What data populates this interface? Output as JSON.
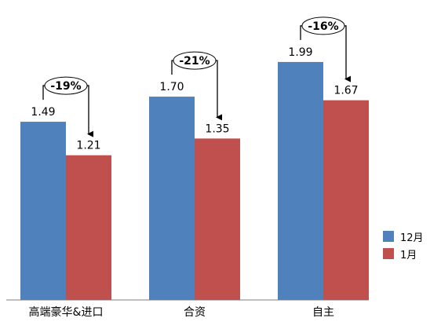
{
  "chart_data": {
    "type": "bar",
    "categories": [
      "高端豪华&进口",
      "合资",
      "自主"
    ],
    "series": [
      {
        "name": "12月",
        "values": [
          1.49,
          1.7,
          1.99
        ],
        "color": "#4f81bd"
      },
      {
        "name": "1月",
        "values": [
          1.21,
          1.35,
          1.67
        ],
        "color": "#c0504d"
      }
    ],
    "changes": [
      "-19%",
      "-21%",
      "-16%"
    ],
    "ylim": [
      0,
      2.2
    ],
    "grid": false,
    "legend_position": "right",
    "data_labels": true
  }
}
